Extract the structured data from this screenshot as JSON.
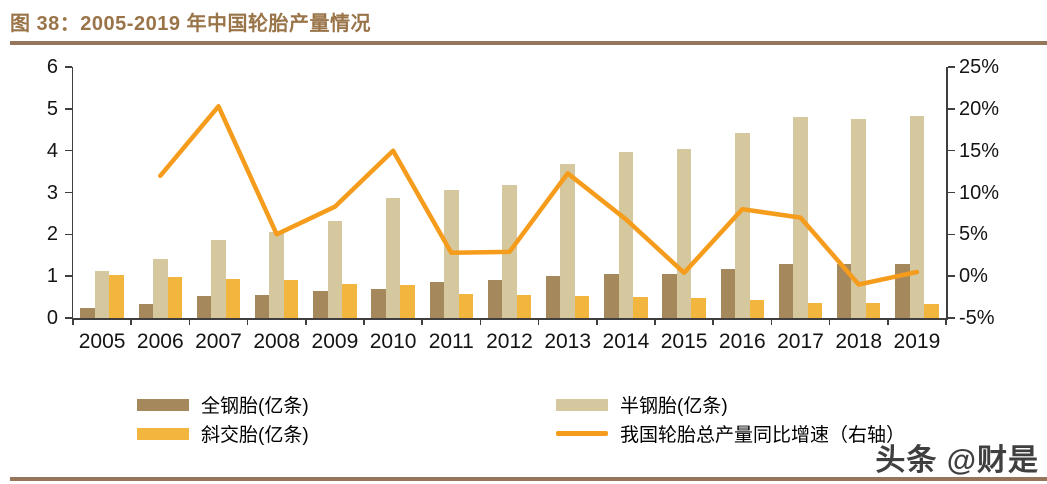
{
  "header": {
    "title": "图 38：2005-2019 年中国轮胎产量情况"
  },
  "watermark": "头条 @财是",
  "colors": {
    "title_brown": "#9a7449",
    "rule_brown": "#96765b",
    "axis": "#3f3f3f",
    "full_steel_bar": "#a6885d",
    "semi_steel_bar": "#d5c79e",
    "bias_bar": "#f2b53d",
    "growth_line": "#f59c1c"
  },
  "chart_data": {
    "type": "bar",
    "title": "2005-2019 年中国轮胎产量情况",
    "categories": [
      "2005",
      "2006",
      "2007",
      "2008",
      "2009",
      "2010",
      "2011",
      "2012",
      "2013",
      "2014",
      "2015",
      "2016",
      "2017",
      "2018",
      "2019"
    ],
    "series": [
      {
        "name": "全钢胎(亿条)",
        "type": "bar",
        "axis": "left",
        "color": "#a6885d",
        "values": [
          0.25,
          0.34,
          0.52,
          0.55,
          0.65,
          0.69,
          0.86,
          0.91,
          1.0,
          1.06,
          1.05,
          1.16,
          1.28,
          1.3,
          1.29
        ]
      },
      {
        "name": "半钢胎(亿条)",
        "type": "bar",
        "axis": "left",
        "color": "#d5c79e",
        "values": [
          1.13,
          1.42,
          1.86,
          2.06,
          2.31,
          2.87,
          3.05,
          3.17,
          3.69,
          3.97,
          4.04,
          4.43,
          4.81,
          4.76,
          4.84
        ]
      },
      {
        "name": "斜交胎(亿条)",
        "type": "bar",
        "axis": "left",
        "color": "#f2b53d",
        "values": [
          1.04,
          0.97,
          0.93,
          0.9,
          0.82,
          0.78,
          0.58,
          0.55,
          0.52,
          0.5,
          0.47,
          0.42,
          0.37,
          0.35,
          0.33
        ]
      },
      {
        "name": "我国轮胎总产量同比增速（右轴）",
        "type": "line",
        "axis": "right",
        "color": "#f59c1c",
        "values_pct": [
          null,
          12.0,
          20.3,
          5.0,
          8.3,
          15.0,
          2.8,
          2.9,
          12.3,
          6.8,
          0.4,
          8.0,
          7.0,
          -1.0,
          0.5
        ]
      }
    ],
    "left_axis": {
      "min": 0,
      "max": 6,
      "ticks": [
        "0",
        "1",
        "2",
        "3",
        "4",
        "5",
        "6"
      ]
    },
    "right_axis": {
      "min": -5,
      "max": 25,
      "ticks": [
        "-5%",
        "0%",
        "5%",
        "10%",
        "15%",
        "20%",
        "25%"
      ]
    },
    "grid": false,
    "legend_position": "bottom"
  }
}
